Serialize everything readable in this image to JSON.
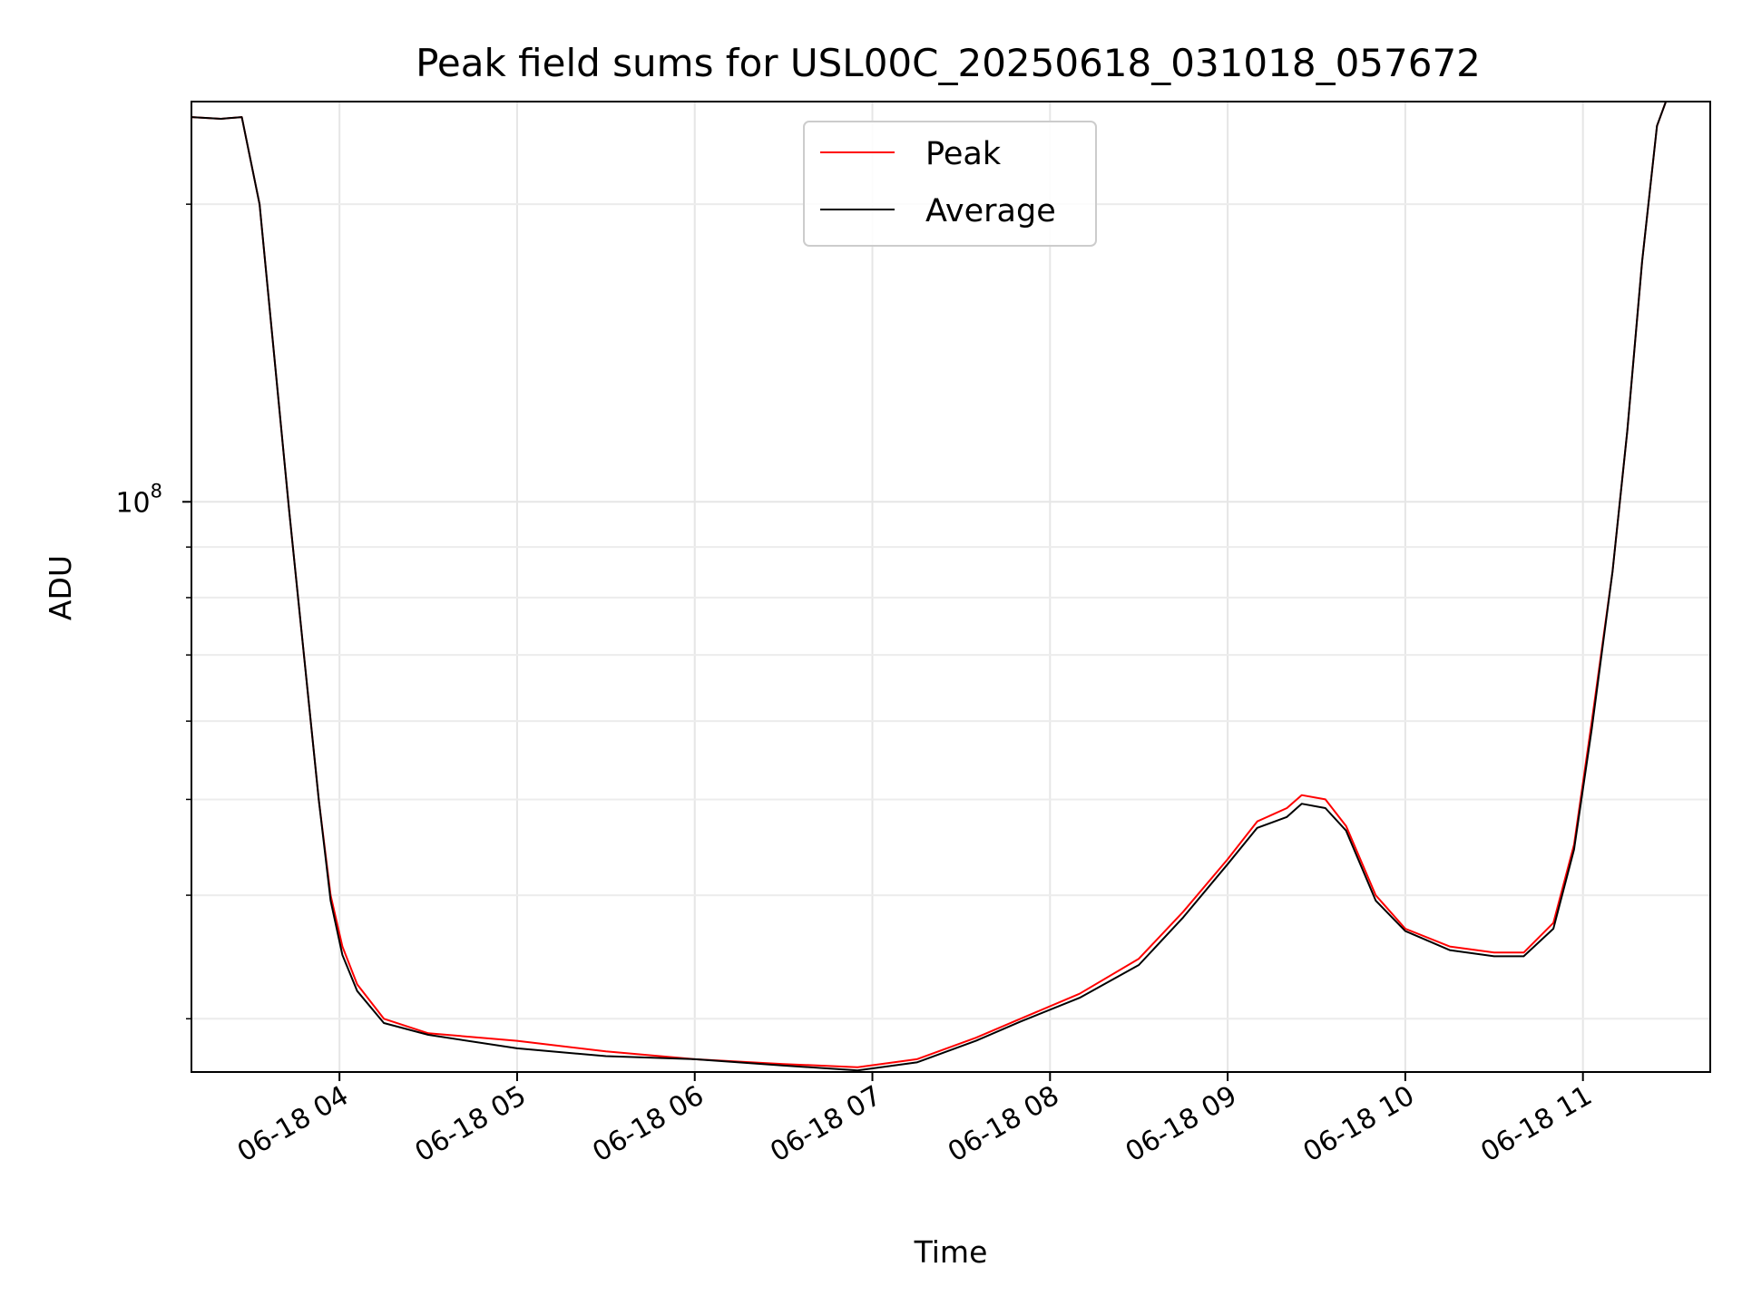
{
  "chart_data": {
    "type": "line",
    "title": "Peak field sums for USL00C_20250618_031018_057672",
    "xlabel": "Time",
    "ylabel": "ADU",
    "y_scale": "log",
    "ylim": [
      26500000,
      254000000
    ],
    "xlim": [
      "2025-06-18 03:10",
      "2025-06-18 11:43"
    ],
    "grid": true,
    "legend": "upper center",
    "x_ticks": [
      {
        "t": "2025-06-18 04:00",
        "label": "06-18 04"
      },
      {
        "t": "2025-06-18 05:00",
        "label": "06-18 05"
      },
      {
        "t": "2025-06-18 06:00",
        "label": "06-18 06"
      },
      {
        "t": "2025-06-18 07:00",
        "label": "06-18 07"
      },
      {
        "t": "2025-06-18 08:00",
        "label": "06-18 08"
      },
      {
        "t": "2025-06-18 09:00",
        "label": "06-18 09"
      },
      {
        "t": "2025-06-18 10:00",
        "label": "06-18 10"
      },
      {
        "t": "2025-06-18 11:00",
        "label": "06-18 11"
      }
    ],
    "y_ticks": [
      {
        "value": 100000000,
        "base": "10",
        "exp": "8"
      }
    ],
    "y_minor_ticks": [
      30000000,
      40000000,
      50000000,
      60000000,
      70000000,
      80000000,
      90000000,
      200000000
    ],
    "series": [
      {
        "name": "Peak",
        "color": "#ff0000",
        "points": [
          [
            "2025-06-18 03:10",
            245000000
          ],
          [
            "2025-06-18 03:20",
            244000000
          ],
          [
            "2025-06-18 03:27",
            245000000
          ],
          [
            "2025-06-18 03:33",
            200000000
          ],
          [
            "2025-06-18 03:38",
            140000000
          ],
          [
            "2025-06-18 03:43",
            98000000
          ],
          [
            "2025-06-18 03:48",
            70000000
          ],
          [
            "2025-06-18 03:53",
            50000000
          ],
          [
            "2025-06-18 03:57",
            40000000
          ],
          [
            "2025-06-18 04:01",
            35500000
          ],
          [
            "2025-06-18 04:06",
            32500000
          ],
          [
            "2025-06-18 04:15",
            30000000
          ],
          [
            "2025-06-18 04:30",
            29000000
          ],
          [
            "2025-06-18 05:00",
            28500000
          ],
          [
            "2025-06-18 05:30",
            27800000
          ],
          [
            "2025-06-18 06:00",
            27300000
          ],
          [
            "2025-06-18 06:30",
            27000000
          ],
          [
            "2025-06-18 06:55",
            26800000
          ],
          [
            "2025-06-18 07:15",
            27300000
          ],
          [
            "2025-06-18 07:35",
            28700000
          ],
          [
            "2025-06-18 07:50",
            30000000
          ],
          [
            "2025-06-18 08:10",
            31800000
          ],
          [
            "2025-06-18 08:30",
            34500000
          ],
          [
            "2025-06-18 08:45",
            38500000
          ],
          [
            "2025-06-18 09:00",
            43500000
          ],
          [
            "2025-06-18 09:10",
            47500000
          ],
          [
            "2025-06-18 09:20",
            49000000
          ],
          [
            "2025-06-18 09:25",
            50500000
          ],
          [
            "2025-06-18 09:33",
            50000000
          ],
          [
            "2025-06-18 09:40",
            47000000
          ],
          [
            "2025-06-18 09:50",
            40000000
          ],
          [
            "2025-06-18 10:00",
            37000000
          ],
          [
            "2025-06-18 10:15",
            35500000
          ],
          [
            "2025-06-18 10:30",
            35000000
          ],
          [
            "2025-06-18 10:40",
            35000000
          ],
          [
            "2025-06-18 10:50",
            37500000
          ],
          [
            "2025-06-18 10:57",
            45000000
          ],
          [
            "2025-06-18 11:03",
            60000000
          ],
          [
            "2025-06-18 11:10",
            85000000
          ],
          [
            "2025-06-18 11:15",
            118000000
          ],
          [
            "2025-06-18 11:20",
            175000000
          ],
          [
            "2025-06-18 11:25",
            240000000
          ],
          [
            "2025-06-18 11:28",
            254000000
          ]
        ]
      },
      {
        "name": "Average",
        "color": "#000000",
        "points": [
          [
            "2025-06-18 03:10",
            245000000
          ],
          [
            "2025-06-18 03:20",
            244000000
          ],
          [
            "2025-06-18 03:27",
            245000000
          ],
          [
            "2025-06-18 03:33",
            200000000
          ],
          [
            "2025-06-18 03:38",
            140000000
          ],
          [
            "2025-06-18 03:43",
            98000000
          ],
          [
            "2025-06-18 03:48",
            70000000
          ],
          [
            "2025-06-18 03:53",
            50000000
          ],
          [
            "2025-06-18 03:57",
            39500000
          ],
          [
            "2025-06-18 04:01",
            34800000
          ],
          [
            "2025-06-18 04:06",
            32000000
          ],
          [
            "2025-06-18 04:15",
            29700000
          ],
          [
            "2025-06-18 04:30",
            28900000
          ],
          [
            "2025-06-18 05:00",
            28000000
          ],
          [
            "2025-06-18 05:30",
            27500000
          ],
          [
            "2025-06-18 06:00",
            27300000
          ],
          [
            "2025-06-18 06:30",
            26900000
          ],
          [
            "2025-06-18 06:55",
            26600000
          ],
          [
            "2025-06-18 07:15",
            27100000
          ],
          [
            "2025-06-18 07:35",
            28500000
          ],
          [
            "2025-06-18 07:50",
            29800000
          ],
          [
            "2025-06-18 08:10",
            31500000
          ],
          [
            "2025-06-18 08:30",
            34000000
          ],
          [
            "2025-06-18 08:45",
            38000000
          ],
          [
            "2025-06-18 09:00",
            43000000
          ],
          [
            "2025-06-18 09:10",
            46800000
          ],
          [
            "2025-06-18 09:20",
            48000000
          ],
          [
            "2025-06-18 09:25",
            49500000
          ],
          [
            "2025-06-18 09:33",
            49000000
          ],
          [
            "2025-06-18 09:40",
            46500000
          ],
          [
            "2025-06-18 09:50",
            39500000
          ],
          [
            "2025-06-18 10:00",
            36800000
          ],
          [
            "2025-06-18 10:15",
            35200000
          ],
          [
            "2025-06-18 10:30",
            34700000
          ],
          [
            "2025-06-18 10:40",
            34700000
          ],
          [
            "2025-06-18 10:50",
            37000000
          ],
          [
            "2025-06-18 10:57",
            44500000
          ],
          [
            "2025-06-18 11:03",
            59000000
          ],
          [
            "2025-06-18 11:10",
            85000000
          ],
          [
            "2025-06-18 11:15",
            118000000
          ],
          [
            "2025-06-18 11:20",
            175000000
          ],
          [
            "2025-06-18 11:25",
            240000000
          ],
          [
            "2025-06-18 11:28",
            254000000
          ]
        ]
      }
    ]
  }
}
